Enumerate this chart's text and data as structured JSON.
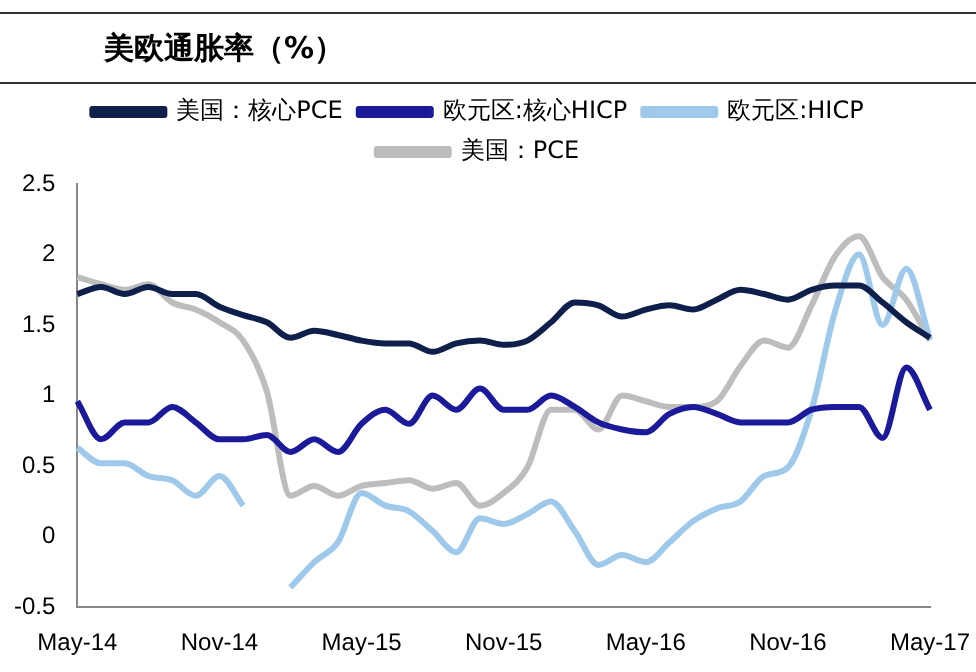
{
  "chart_data": {
    "type": "line",
    "title": "美欧通胀率（%）",
    "categories": [
      "May-14",
      null,
      null,
      null,
      null,
      null,
      "Nov-14",
      null,
      null,
      null,
      null,
      null,
      "May-15",
      null,
      null,
      null,
      null,
      null,
      "Nov-15",
      null,
      null,
      null,
      null,
      null,
      "May-16",
      null,
      null,
      null,
      null,
      null,
      "Nov-16",
      null,
      null,
      null,
      null,
      null,
      "May-17"
    ],
    "series": [
      {
        "name": "美国：核心PCE",
        "color": "#0d1f4a",
        "values": [
          1.72,
          1.77,
          1.72,
          1.77,
          1.72,
          1.72,
          1.63,
          1.57,
          1.52,
          1.41,
          1.46,
          1.43,
          1.39,
          1.37,
          1.37,
          1.31,
          1.37,
          1.39,
          1.36,
          1.39,
          1.52,
          1.66,
          1.64,
          1.56,
          1.61,
          1.64,
          1.61,
          1.68,
          1.75,
          1.72,
          1.68,
          1.75,
          1.78,
          1.78,
          1.66,
          1.52,
          1.41
        ]
      },
      {
        "name": "欧元区:核心HICP",
        "color": "#1a1a9a",
        "values": [
          0.96,
          0.69,
          0.81,
          0.81,
          0.92,
          0.81,
          0.69,
          0.69,
          0.72,
          0.6,
          0.69,
          0.6,
          0.8,
          0.9,
          0.8,
          1.0,
          0.9,
          1.05,
          0.9,
          0.9,
          1.0,
          0.92,
          0.81,
          0.76,
          0.74,
          0.87,
          0.92,
          0.87,
          0.81,
          0.81,
          0.81,
          0.9,
          0.92,
          0.92,
          0.7,
          1.2,
          0.9
        ]
      },
      {
        "name": "欧元区:HICP",
        "color": "#9ec9ea",
        "values": [
          0.63,
          0.52,
          0.52,
          0.43,
          0.4,
          0.29,
          0.43,
          0.22,
          null,
          -0.36,
          -0.18,
          -0.04,
          0.31,
          0.22,
          0.18,
          0.04,
          -0.11,
          0.13,
          0.09,
          0.16,
          0.25,
          0.04,
          -0.2,
          -0.13,
          -0.18,
          -0.04,
          0.11,
          0.2,
          0.25,
          0.43,
          0.49,
          0.9,
          1.6,
          2.0,
          1.5,
          1.9,
          1.4
        ]
      },
      {
        "name": "美国：PCE",
        "color": "#bdbdbd",
        "values": [
          1.84,
          1.79,
          1.75,
          1.79,
          1.66,
          1.61,
          1.52,
          1.39,
          1.03,
          0.29,
          0.36,
          0.29,
          0.36,
          0.38,
          0.4,
          0.34,
          0.38,
          0.22,
          0.31,
          0.49,
          0.9,
          0.9,
          0.76,
          1.0,
          0.96,
          0.92,
          0.92,
          0.96,
          1.21,
          1.39,
          1.34,
          1.64,
          1.99,
          2.13,
          1.84,
          1.68,
          1.39
        ]
      }
    ],
    "ylim": [
      -0.5,
      2.5
    ],
    "yticks": [
      -0.5,
      0,
      0.5,
      1,
      1.5,
      2,
      2.5
    ],
    "grid": false,
    "legend": "top",
    "marker": "none",
    "line_style": "solid"
  }
}
